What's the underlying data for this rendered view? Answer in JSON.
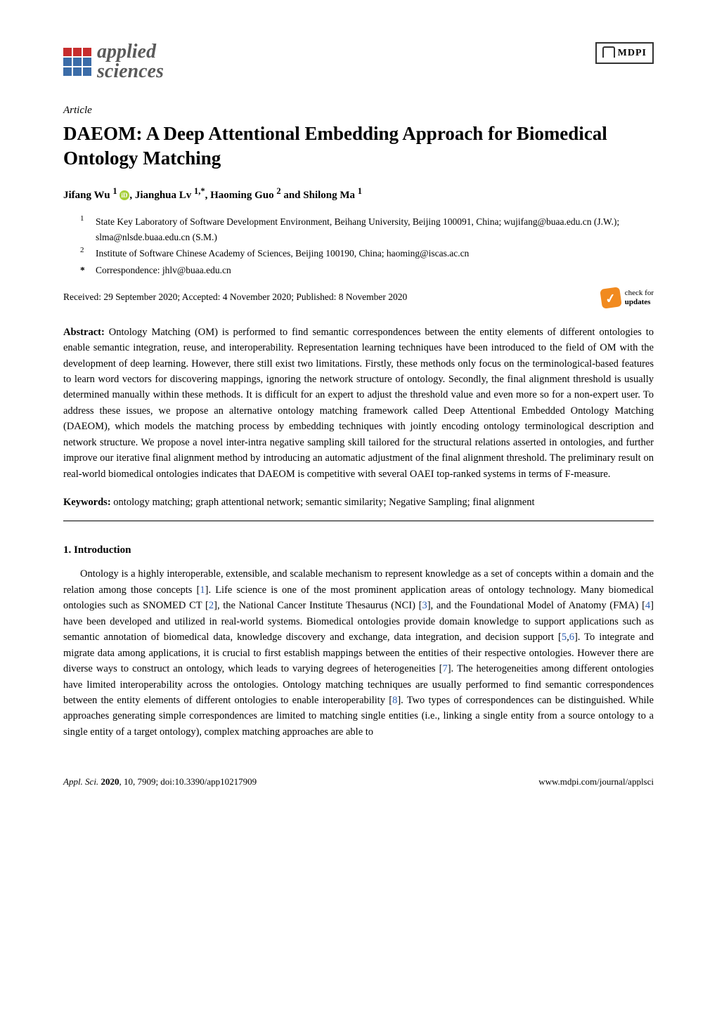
{
  "journal": {
    "name_line1": "applied",
    "name_line2": "sciences",
    "publisher": "MDPI"
  },
  "article": {
    "type_label": "Article",
    "title": "DAEOM: A Deep Attentional Embedding Approach for Biomedical Ontology Matching",
    "authors_html": "Jifang Wu ¹ ⓘ, Jianghua Lv ¹·*, Haoming Guo ² and Shilong Ma ¹",
    "authors": {
      "a1": "Jifang Wu",
      "a1_sup": "1",
      "a2": "Jianghua Lv",
      "a2_sup": "1,*",
      "a3": "Haoming Guo",
      "a3_sup": "2",
      "a4": "Shilong Ma",
      "a4_sup": "1"
    },
    "affiliations": [
      {
        "num": "1",
        "text": "State Key Laboratory of Software Development Environment, Beihang University, Beijing 100091, China; wujifang@buaa.edu.cn (J.W.); slma@nlsde.buaa.edu.cn (S.M.)"
      },
      {
        "num": "2",
        "text": "Institute of Software Chinese Academy of Sciences, Beijing 100190, China; haoming@iscas.ac.cn"
      }
    ],
    "correspondence": {
      "star": "*",
      "text": "Correspondence: jhlv@buaa.edu.cn"
    },
    "dates": "Received: 29 September 2020; Accepted: 4 November 2020; Published: 8 November 2020",
    "check_updates_line1": "check for",
    "check_updates_line2": "updates",
    "abstract_label": "Abstract:",
    "abstract_text": " Ontology Matching (OM) is performed to find semantic correspondences between the entity elements of different ontologies to enable semantic integration, reuse, and interoperability. Representation learning techniques have been introduced to the field of OM with the development of deep learning. However, there still exist two limitations. Firstly, these methods only focus on the terminological-based features to learn word vectors for discovering mappings, ignoring the network structure of ontology. Secondly, the final alignment threshold is usually determined manually within these methods. It is difficult for an expert to adjust the threshold value and even more so for a non-expert user. To address these issues, we propose an alternative ontology matching framework called Deep Attentional Embedded Ontology Matching (DAEOM), which models the matching process by embedding techniques with jointly encoding ontology terminological description and network structure. We propose a novel inter-intra negative sampling skill tailored for the structural relations asserted in ontologies, and further improve our iterative final alignment method by introducing an automatic adjustment of the final alignment threshold. The preliminary result on real-world biomedical ontologies indicates that DAEOM is competitive with several OAEI top-ranked systems in terms of F-measure.",
    "keywords_label": "Keywords:",
    "keywords_text": " ontology matching; graph attentional network; semantic similarity; Negative Sampling; final alignment"
  },
  "section1": {
    "heading": "1. Introduction",
    "para1_part1": "Ontology is a highly interoperable, extensible, and scalable mechanism to represent knowledge as a set of concepts within a domain and the relation among those concepts [",
    "c1": "1",
    "para1_part2": "]. Life science is one of the most prominent application areas of ontology technology. Many biomedical ontologies such as SNOMED CT [",
    "c2": "2",
    "para1_part3": "], the National Cancer Institute Thesaurus (NCI) [",
    "c3": "3",
    "para1_part4": "], and the Foundational Model of Anatomy (FMA) [",
    "c4": "4",
    "para1_part5": "] have been developed and utilized in real-world systems. Biomedical ontologies provide domain knowledge to support applications such as semantic annotation of biomedical data, knowledge discovery and exchange, data integration, and decision support [",
    "c5": "5",
    "comma56": ",",
    "c6": "6",
    "para1_part6": "]. To integrate and migrate data among applications, it is crucial to first establish mappings between the entities of their respective ontologies. However there are diverse ways to construct an ontology, which leads to varying degrees of heterogeneities [",
    "c7": "7",
    "para1_part7": "]. The heterogeneities among different ontologies have limited interoperability across the ontologies. Ontology matching techniques are usually performed to find semantic correspondences between the entity elements of different ontologies to enable interoperability [",
    "c8": "8",
    "para1_part8": "]. Two types of correspondences can be distinguished. While approaches generating simple correspondences are limited to matching single entities (i.e., linking a single entity from a source ontology to a single entity of a target ontology), complex matching approaches are able to"
  },
  "footer": {
    "left_italic": "Appl. Sci. ",
    "left_bold": "2020",
    "left_rest": ", 10, 7909; doi:10.3390/app10217909",
    "right": "www.mdpi.com/journal/applsci"
  },
  "colors": {
    "citation": "#2a5db0",
    "orcid": "#a6ce39",
    "check_badge": "#f18a1f",
    "logo_red": "#c72e2e",
    "logo_blue": "#3b6ca8",
    "text": "#000000",
    "background": "#ffffff"
  },
  "typography": {
    "body_fontsize_pt": 11,
    "title_fontsize_pt": 20,
    "journal_fontsize_pt": 21,
    "font_family": "Palatino"
  }
}
